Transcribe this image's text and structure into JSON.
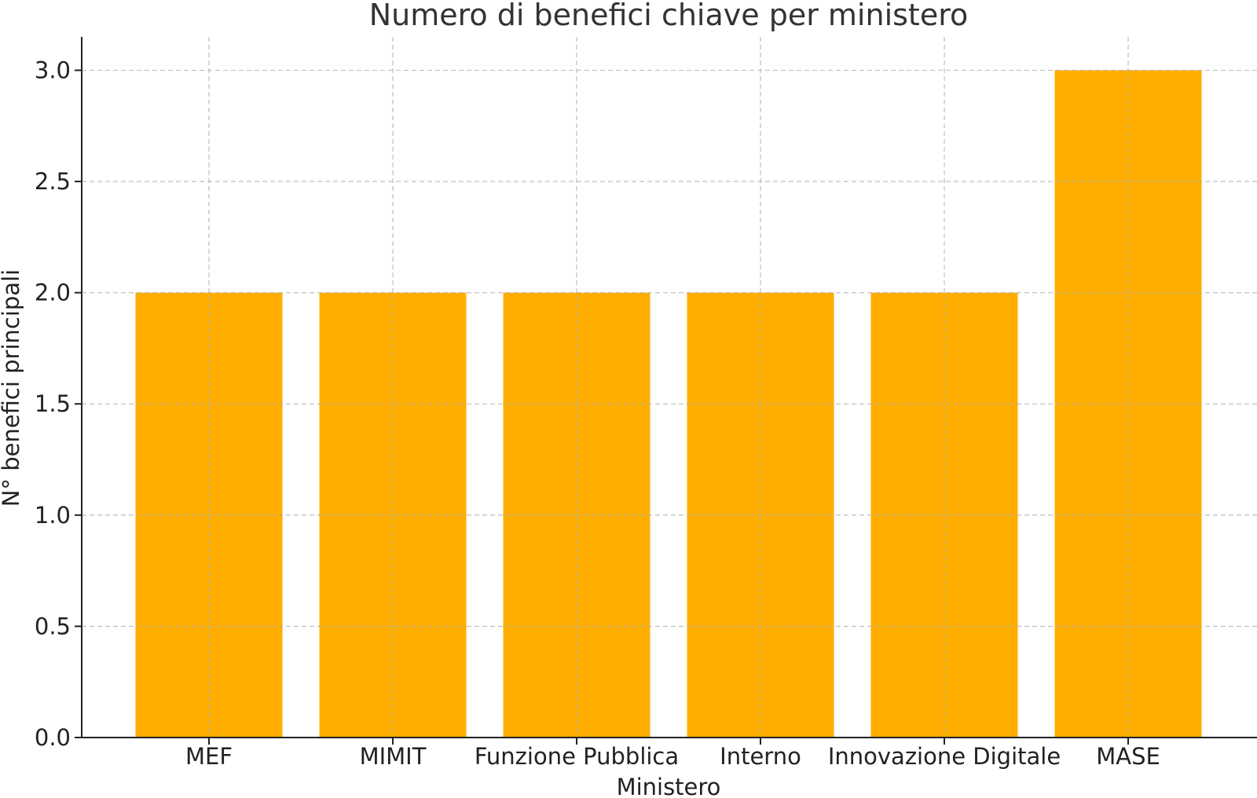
{
  "chart_data": {
    "type": "bar",
    "title": "Numero di benefici chiave per ministero",
    "xlabel": "Ministero",
    "ylabel": "N° benefici principali",
    "categories": [
      "MEF",
      "MIMIT",
      "Funzione Pubblica",
      "Interno",
      "Innovazione Digitale",
      "MASE"
    ],
    "values": [
      2,
      2,
      2,
      2,
      2,
      3
    ],
    "ylim": [
      0,
      3.15
    ],
    "yticks": [
      "0.0",
      "0.5",
      "1.0",
      "1.5",
      "2.0",
      "2.5",
      "3.0"
    ],
    "grid": true,
    "bar_color": "#FFAE00"
  }
}
